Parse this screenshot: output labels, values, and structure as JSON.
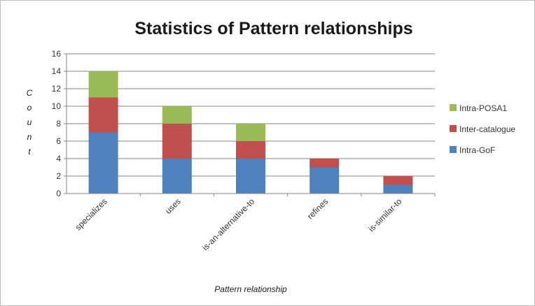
{
  "chart_data": {
    "type": "bar",
    "stacked": true,
    "title": "Statistics of Pattern relationships",
    "xlabel": "Pattern relationship",
    "ylabel": "Count",
    "categories": [
      "specializes",
      "uses",
      "is-an-alternative-to",
      "refines",
      "is-similar-to"
    ],
    "series": [
      {
        "name": "Intra-GoF",
        "values": [
          7,
          4,
          4,
          3,
          1
        ],
        "color": "#4f81bd"
      },
      {
        "name": "Inter-catalogue",
        "values": [
          4,
          4,
          2,
          1,
          1
        ],
        "color": "#c0504d"
      },
      {
        "name": "Intra-POSA1",
        "values": [
          3,
          2,
          2,
          0,
          0
        ],
        "color": "#9bbb59"
      }
    ],
    "ylim": [
      0,
      16
    ],
    "yticks": [
      0,
      2,
      4,
      6,
      8,
      10,
      12,
      14,
      16
    ],
    "grid": true,
    "legend_position": "right"
  }
}
